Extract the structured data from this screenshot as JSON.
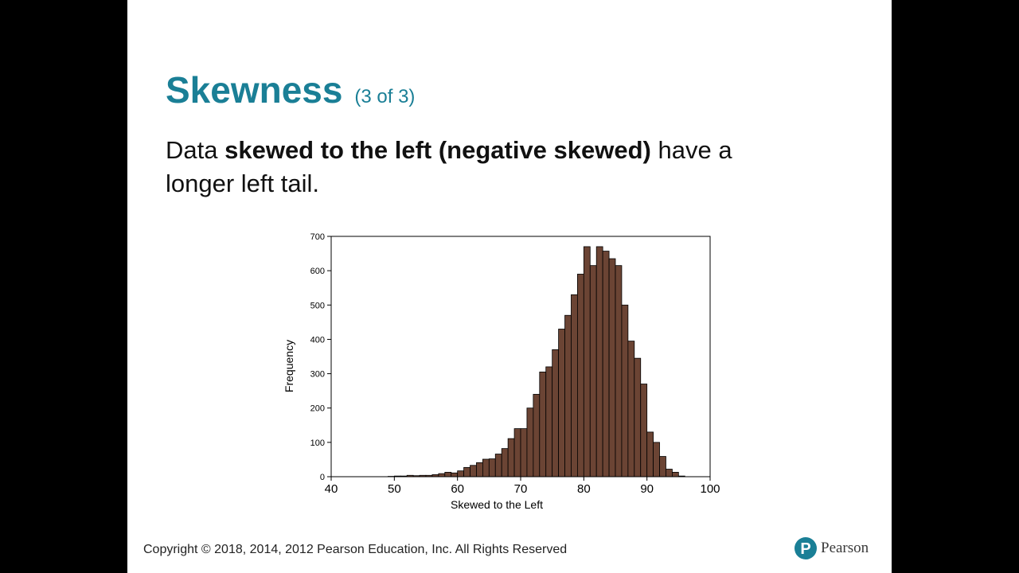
{
  "slide": {
    "title": "Skewness",
    "title_suffix": "(3 of 3)",
    "body": {
      "prefix": "Data ",
      "emphasis": "skewed to the left (negative skewed)",
      "suffix": " have a longer left tail."
    },
    "footer": "Copyright © 2018, 2014, 2012 Pearson Education, Inc. All Rights Reserved",
    "logo_text": "Pearson",
    "logo_letter": "P",
    "colors": {
      "title": "#1a7f96",
      "bar_fill": "#6b4434",
      "bar_stroke": "#000000",
      "logo": "#1a7f96"
    }
  },
  "chart_data": {
    "type": "bar",
    "xlabel": "Skewed to the Left",
    "ylabel": "Frequency",
    "xlim": [
      40,
      100
    ],
    "ylim": [
      0,
      700
    ],
    "xticks": [
      40,
      50,
      60,
      70,
      80,
      90,
      100
    ],
    "yticks": [
      0,
      100,
      200,
      300,
      400,
      500,
      600,
      700
    ],
    "grid": false,
    "bin_width": 1,
    "bin_starts": [
      49,
      50,
      51,
      52,
      53,
      54,
      55,
      56,
      57,
      58,
      59,
      60,
      61,
      62,
      63,
      64,
      65,
      66,
      67,
      68,
      69,
      70,
      71,
      72,
      73,
      74,
      75,
      76,
      77,
      78,
      79,
      80,
      81,
      82,
      83,
      84,
      85,
      86,
      87,
      88,
      89,
      90,
      91,
      92,
      93,
      94,
      95
    ],
    "values": [
      1,
      2,
      2,
      4,
      3,
      4,
      4,
      6,
      9,
      13,
      11,
      17,
      27,
      33,
      41,
      51,
      52,
      66,
      82,
      111,
      140,
      140,
      200,
      240,
      305,
      320,
      370,
      430,
      470,
      530,
      590,
      670,
      615,
      670,
      657,
      635,
      615,
      500,
      395,
      345,
      270,
      130,
      100,
      59,
      22,
      13,
      2
    ],
    "series": [
      {
        "name": "",
        "values": []
      }
    ]
  }
}
